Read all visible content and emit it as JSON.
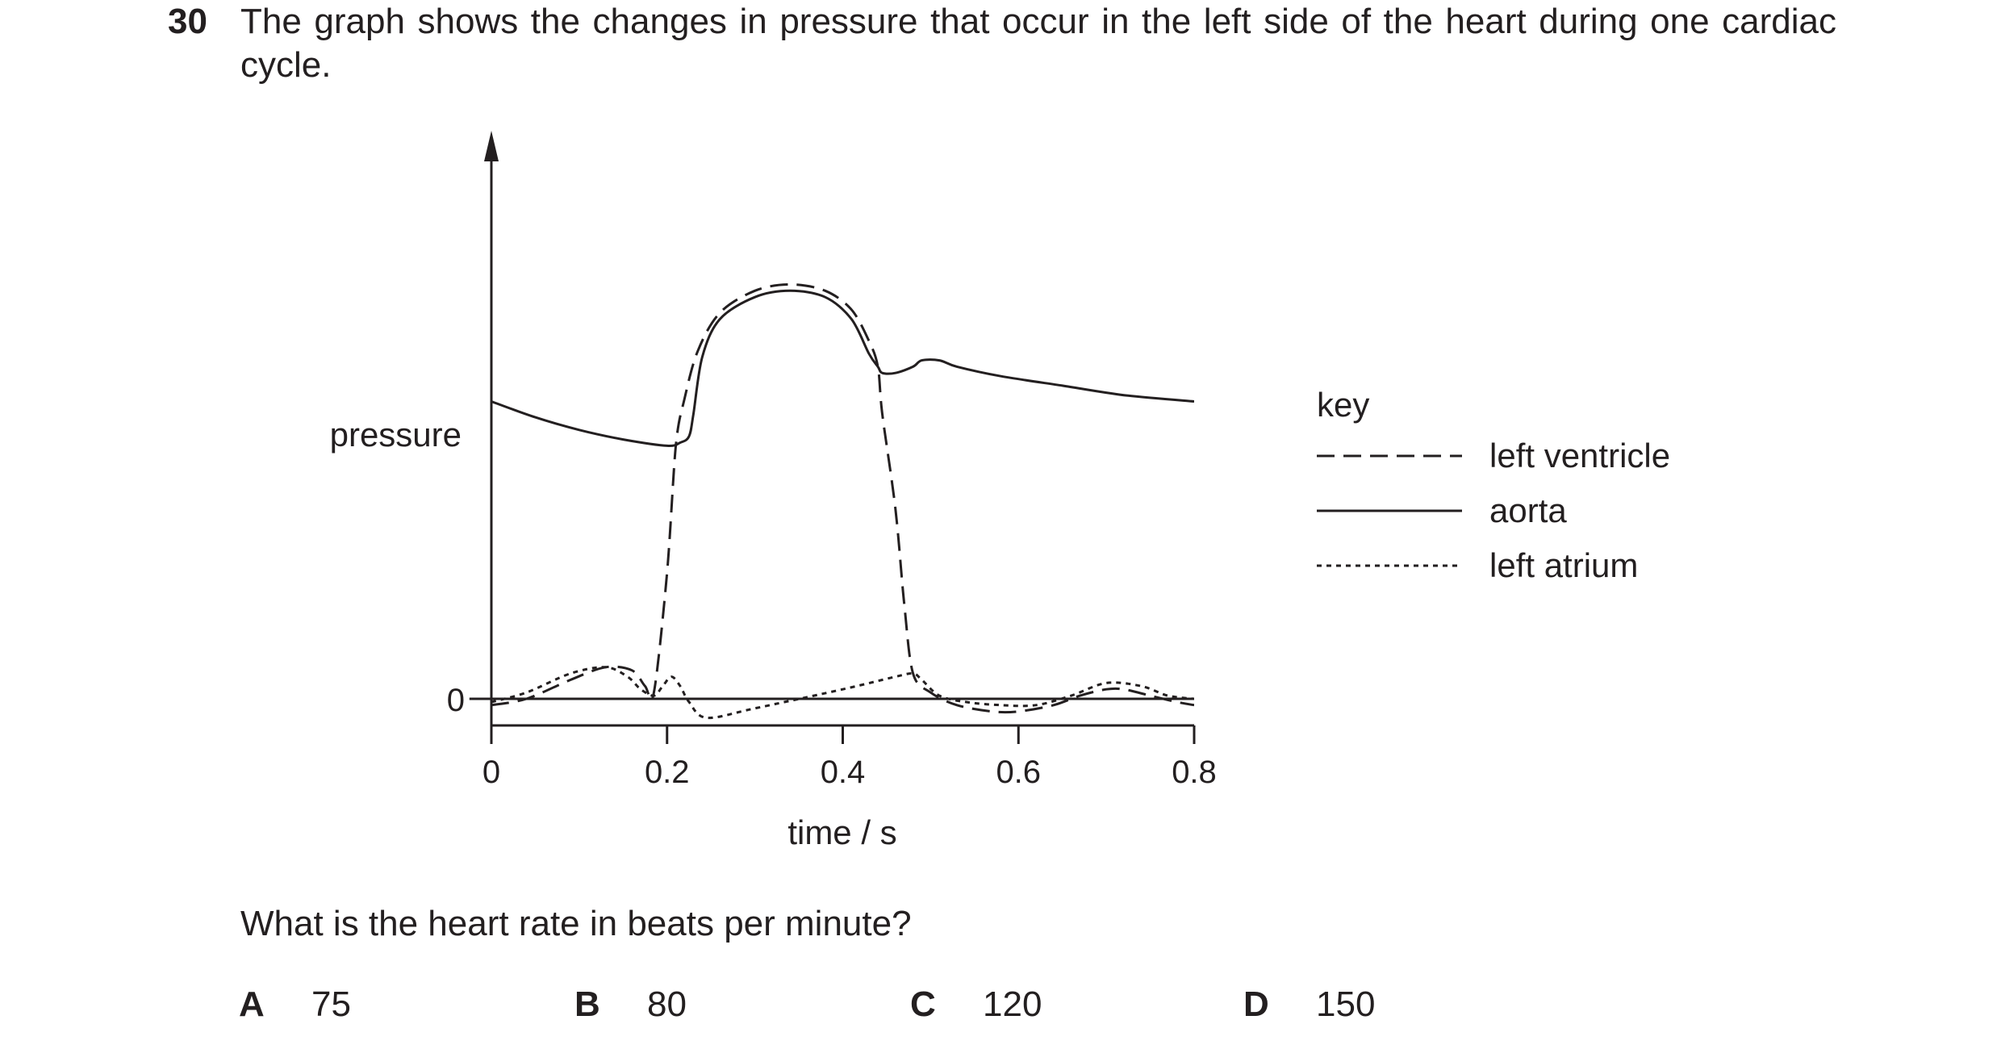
{
  "question": {
    "number": "30",
    "stem": "The graph shows the changes in pressure that occur in the left side of the heart during one cardiac cycle.",
    "prompt": "What is the heart rate in beats per minute?",
    "options": [
      {
        "letter": "A",
        "value": "75"
      },
      {
        "letter": "B",
        "value": "80"
      },
      {
        "letter": "C",
        "value": "120"
      },
      {
        "letter": "D",
        "value": "150"
      }
    ]
  },
  "key": {
    "title": "key"
  },
  "chart_data": {
    "type": "line",
    "title": "",
    "xlabel": "time / s",
    "ylabel": "pressure",
    "xlim": [
      0,
      0.8
    ],
    "xticks": [
      "0",
      "0.2",
      "0.4",
      "0.6",
      "0.8"
    ],
    "ytick_zero": "0",
    "ylim": [
      -10,
      136
    ],
    "y_relative": true,
    "grid": false,
    "legend_position": "right",
    "series": [
      {
        "name": "left ventricle",
        "style": "dashed",
        "x": [
          0,
          0.04,
          0.09,
          0.13,
          0.16,
          0.175,
          0.185,
          0.2,
          0.21,
          0.22,
          0.235,
          0.26,
          0.3,
          0.34,
          0.38,
          0.41,
          0.43,
          0.44,
          0.445,
          0.46,
          0.47,
          0.48,
          0.5,
          0.53,
          0.57,
          0.6,
          0.64,
          0.67,
          0.7,
          0.72,
          0.75,
          0.78,
          0.8
        ],
        "y": [
          -2,
          0,
          6,
          10,
          9,
          4,
          2,
          40,
          80,
          95,
          110,
          122,
          129,
          131,
          129,
          123,
          113,
          105,
          90,
          60,
          30,
          8,
          2,
          -2,
          -4,
          -4,
          -2,
          1,
          3,
          3,
          1,
          -1,
          -2
        ]
      },
      {
        "name": "aorta",
        "style": "solid",
        "x": [
          0,
          0.05,
          0.1,
          0.15,
          0.2,
          0.215,
          0.225,
          0.23,
          0.24,
          0.26,
          0.3,
          0.34,
          0.38,
          0.41,
          0.43,
          0.44,
          0.445,
          0.46,
          0.48,
          0.49,
          0.51,
          0.53,
          0.58,
          0.65,
          0.72,
          0.8
        ],
        "y": [
          94,
          89,
          85,
          82,
          80,
          81,
          83,
          90,
          108,
          120,
          127,
          129,
          127,
          120,
          109,
          105,
          103,
          103,
          105,
          107,
          107,
          105,
          102,
          99,
          96,
          94
        ]
      },
      {
        "name": "left atrium",
        "style": "dotted",
        "x": [
          0,
          0.04,
          0.09,
          0.13,
          0.155,
          0.17,
          0.185,
          0.195,
          0.205,
          0.215,
          0.225,
          0.245,
          0.3,
          0.4,
          0.46,
          0.48,
          0.49,
          0.51,
          0.54,
          0.58,
          0.62,
          0.66,
          0.7,
          0.74,
          0.77,
          0.8
        ],
        "y": [
          -1,
          2,
          8,
          10,
          7,
          3,
          1,
          4,
          7,
          4,
          -1,
          -6,
          -3,
          3,
          7,
          8,
          6,
          1,
          -1,
          -2,
          -2,
          1,
          5,
          4,
          1,
          0
        ]
      },
      {
        "name": "zero",
        "style": "baseline",
        "x": [
          -0.025,
          0.8
        ],
        "y": [
          0,
          0
        ]
      }
    ]
  }
}
